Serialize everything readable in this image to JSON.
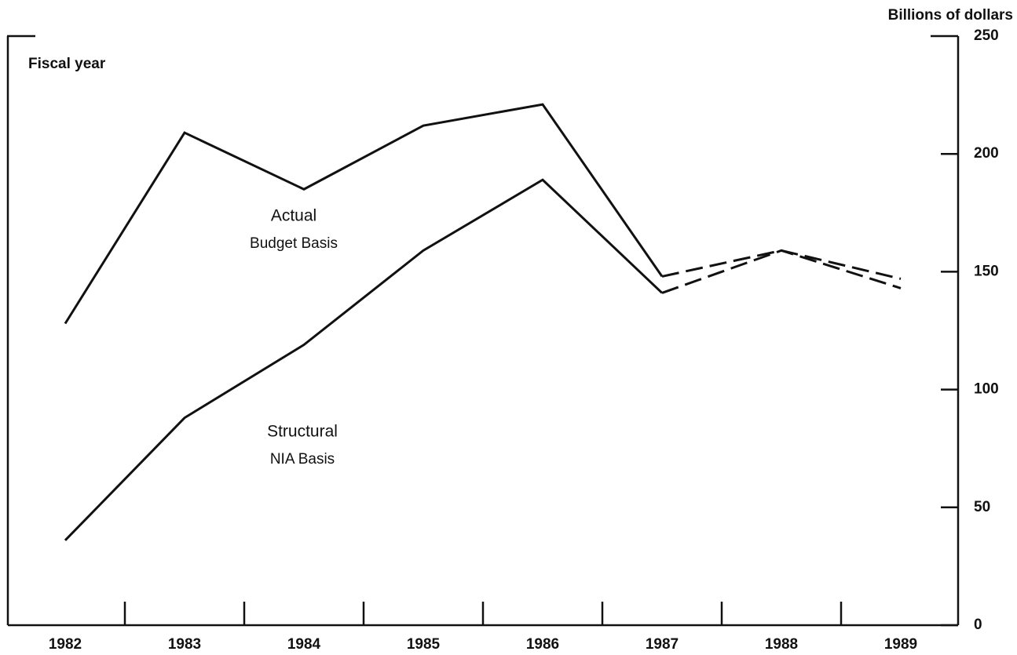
{
  "chart_data": {
    "type": "line",
    "y_label": "Billions of dollars",
    "x_label": "Fiscal year",
    "categories": [
      "1982",
      "1983",
      "1984",
      "1985",
      "1986",
      "1987",
      "1988",
      "1989"
    ],
    "series": [
      {
        "name": "Actual Budget Basis",
        "color": "#111111",
        "values": [
          128,
          209,
          185,
          212,
          221,
          148,
          159,
          147
        ]
      },
      {
        "name": "Structural NIA Basis",
        "color": "#111111",
        "values": [
          36,
          88,
          119,
          159,
          189,
          141,
          159,
          143
        ]
      }
    ],
    "annotations": [
      "Actual",
      "Budget Basis",
      "Structural",
      "NIA Basis"
    ],
    "projected_from": "1987",
    "ylim": [
      0,
      250
    ],
    "yticks": [
      0,
      50,
      100,
      150,
      200,
      250
    ],
    "y_axis_side": "right"
  }
}
